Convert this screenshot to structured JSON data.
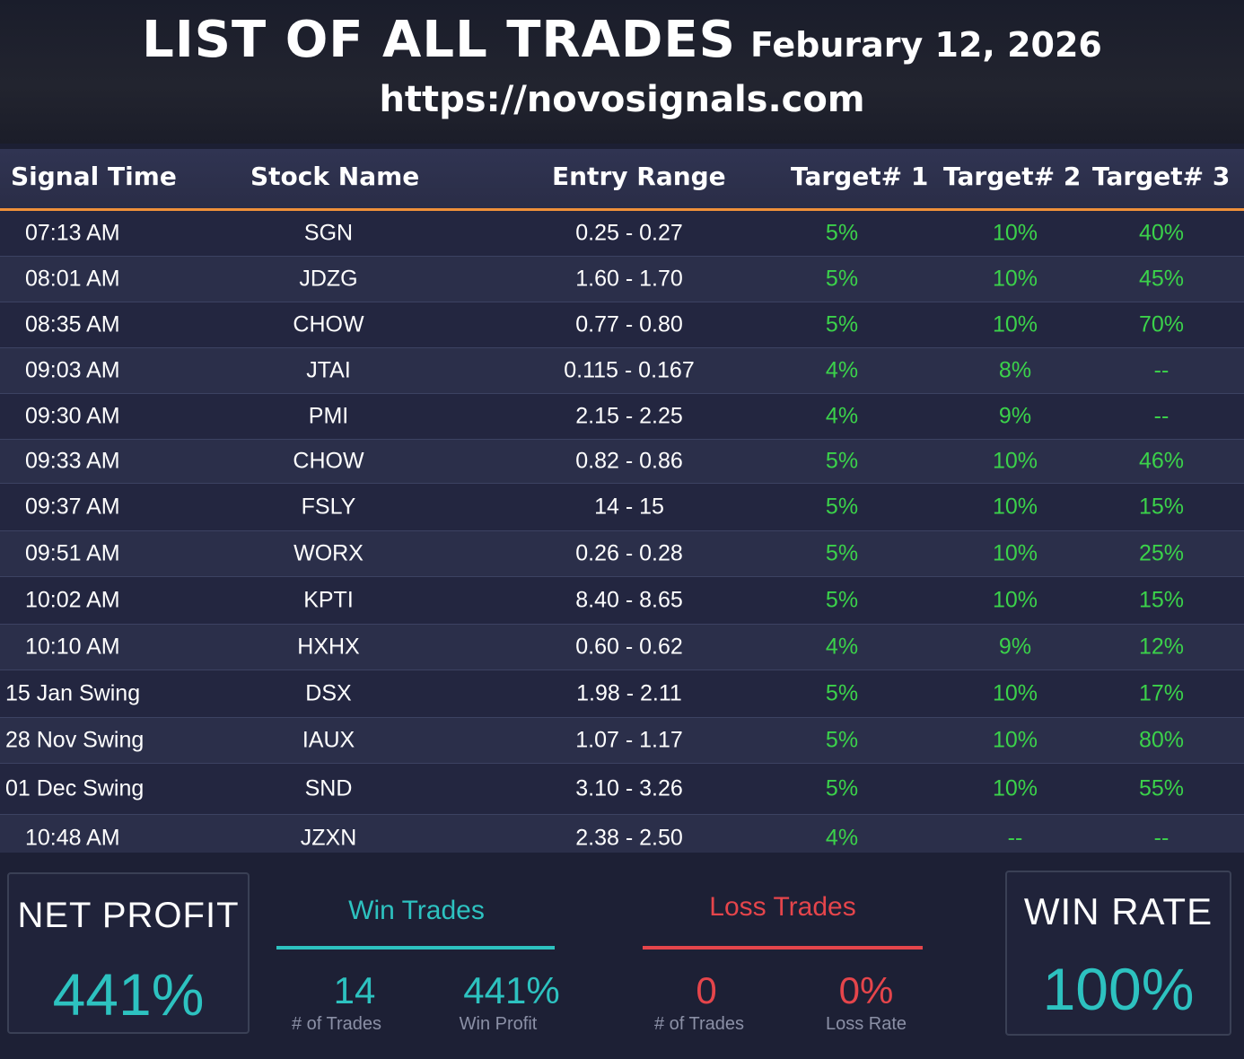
{
  "header": {
    "title": "LIST OF ALL TRADES",
    "date": "Feburary 12, 2026",
    "url": "https://novosignals.com"
  },
  "columns": [
    "Signal Time",
    "Stock Name",
    "Entry Range",
    "Target# 1",
    "Target# 2",
    "Target# 3"
  ],
  "rows": [
    {
      "time": "07:13 AM",
      "name": "SGN",
      "range": "0.25 - 0.27",
      "t1": "5%",
      "t2": "10%",
      "t3": "40%"
    },
    {
      "time": "08:01 AM",
      "name": "JDZG",
      "range": "1.60 - 1.70",
      "t1": "5%",
      "t2": "10%",
      "t3": "45%"
    },
    {
      "time": "08:35 AM",
      "name": "CHOW",
      "range": "0.77 - 0.80",
      "t1": "5%",
      "t2": "10%",
      "t3": "70%"
    },
    {
      "time": "09:03 AM",
      "name": "JTAI",
      "range": "0.115 - 0.167",
      "t1": "4%",
      "t2": "8%",
      "t3": "--"
    },
    {
      "time": "09:30 AM",
      "name": "PMI",
      "range": "2.15 - 2.25",
      "t1": "4%",
      "t2": "9%",
      "t3": "--"
    },
    {
      "time": "09:33 AM",
      "name": "CHOW",
      "range": "0.82 - 0.86",
      "t1": "5%",
      "t2": "10%",
      "t3": "46%"
    },
    {
      "time": "09:37 AM",
      "name": "FSLY",
      "range": "14 - 15",
      "t1": "5%",
      "t2": "10%",
      "t3": "15%"
    },
    {
      "time": "09:51 AM",
      "name": "WORX",
      "range": "0.26 - 0.28",
      "t1": "5%",
      "t2": "10%",
      "t3": "25%"
    },
    {
      "time": "10:02 AM",
      "name": "KPTI",
      "range": "8.40 - 8.65",
      "t1": "5%",
      "t2": "10%",
      "t3": "15%"
    },
    {
      "time": "10:10 AM",
      "name": "HXHX",
      "range": "0.60 - 0.62",
      "t1": "4%",
      "t2": "9%",
      "t3": "12%"
    },
    {
      "time": "15 Jan Swing",
      "name": "DSX",
      "range": "1.98 - 2.11",
      "t1": "5%",
      "t2": "10%",
      "t3": "17%"
    },
    {
      "time": "28 Nov Swing",
      "name": "IAUX",
      "range": "1.07 - 1.17",
      "t1": "5%",
      "t2": "10%",
      "t3": "80%"
    },
    {
      "time": "01 Dec Swing",
      "name": "SND",
      "range": "3.10 - 3.26",
      "t1": "5%",
      "t2": "10%",
      "t3": "55%"
    },
    {
      "time": "10:48 AM",
      "name": "JZXN",
      "range": "2.38 - 2.50",
      "t1": "4%",
      "t2": "--",
      "t3": "--"
    }
  ],
  "stats": {
    "net_profit_label": "NET PROFIT",
    "net_profit_value": "441%",
    "win_title": "Win Trades",
    "win_count": "14",
    "win_count_label": "# of Trades",
    "win_profit": "441%",
    "win_profit_label": "Win Profit",
    "loss_title": "Loss Trades",
    "loss_count": "0",
    "loss_count_label": "# of Trades",
    "loss_rate": "0%",
    "loss_rate_label": "Loss Rate",
    "win_rate_label": "WIN RATE",
    "win_rate_value": "100%"
  },
  "colors": {
    "accent_orange": "#f0913a",
    "target_green": "#3bd24a",
    "teal": "#2dc2c0",
    "loss_red": "#e5454b"
  }
}
